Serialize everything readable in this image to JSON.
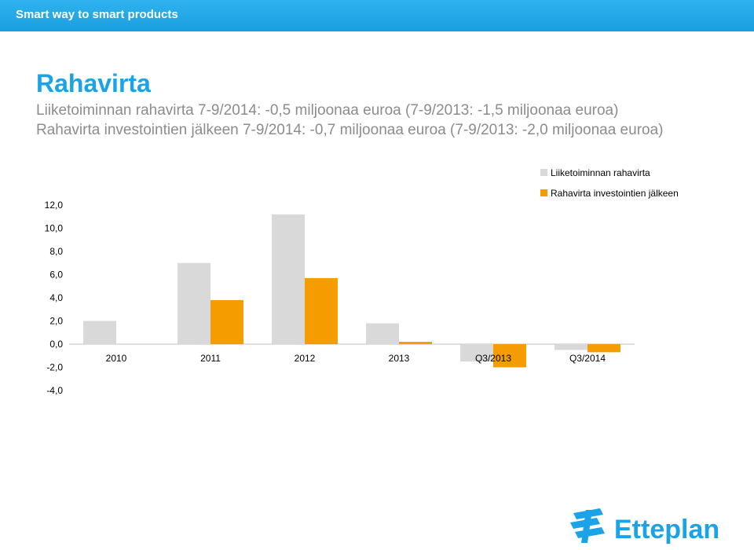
{
  "header": {
    "tagline": "Smart way to smart products"
  },
  "page": {
    "title": "Rahavirta",
    "subtitle_lines": [
      "Liiketoiminnan rahavirta 7-9/2014: -0,5 miljoonaa euroa (7-9/2013: -1,5 miljoonaa euroa)",
      "Rahavirta investointien jälkeen 7-9/2014: -0,7 miljoonaa euroa (7-9/2013: -2,0 miljoonaa euroa)"
    ]
  },
  "colors": {
    "brand": "#1aa3e6",
    "series1": "#d9d9d9",
    "series2": "#f59c00",
    "text": "#8c8c8c"
  },
  "logo": {
    "text": "Etteplan",
    "icon": "etteplan-logo-icon"
  },
  "chart_data": {
    "type": "bar",
    "categories": [
      "2010",
      "2011",
      "2012",
      "2013",
      "Q3/2013",
      "Q3/2014"
    ],
    "series": [
      {
        "name": "Liiketoiminnan rahavirta",
        "values": [
          2.0,
          7.0,
          11.2,
          1.8,
          -1.5,
          -0.5
        ]
      },
      {
        "name": "Rahavirta investointien jälkeen",
        "values": [
          null,
          3.8,
          5.7,
          0.2,
          -2.0,
          -0.7
        ]
      }
    ],
    "ylim": [
      -4,
      12
    ],
    "yticks": [
      "-4,0",
      "-2,0",
      "0,0",
      "2,0",
      "4,0",
      "6,0",
      "8,0",
      "10,0",
      "12,0"
    ],
    "legend": "top-right",
    "grid": false
  }
}
